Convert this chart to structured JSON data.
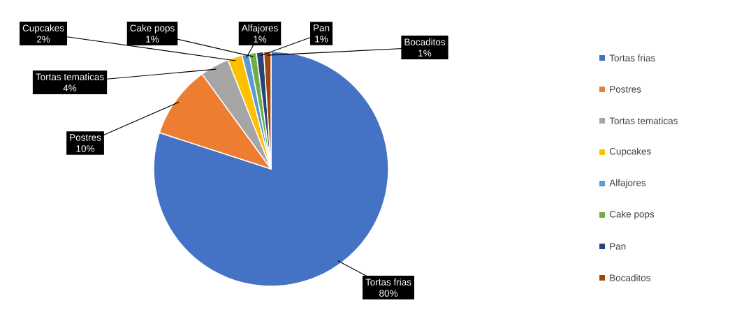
{
  "chart_data": {
    "type": "pie",
    "categories": [
      "Tortas frias",
      "Postres",
      "Tortas tematicas",
      "Cupcakes",
      "Alfajores",
      "Cake pops",
      "Pan",
      "Bocaditos"
    ],
    "values": [
      80,
      10,
      4,
      2,
      1,
      1,
      1,
      1
    ],
    "value_labels": [
      "80%",
      "10%",
      "4%",
      "2%",
      "1%",
      "1%",
      "1%",
      "1%"
    ],
    "colors": [
      "#4472c4",
      "#ed7d31",
      "#a5a5a5",
      "#ffc000",
      "#5b9bd5",
      "#70ad47",
      "#264478",
      "#9e480e"
    ],
    "legend": "right"
  }
}
